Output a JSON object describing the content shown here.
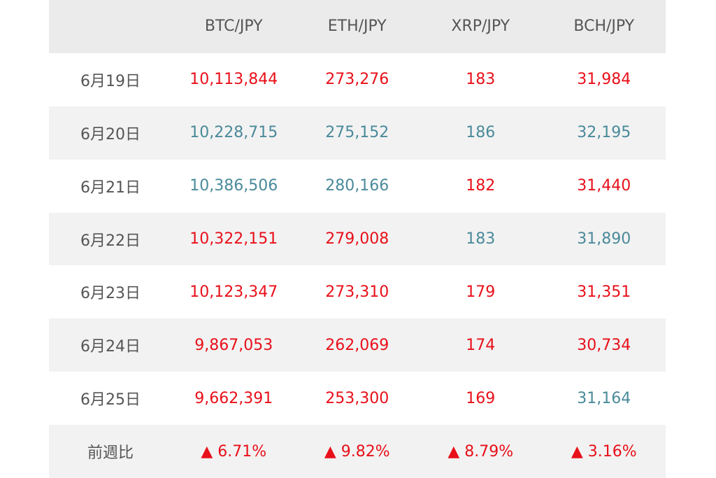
{
  "table": {
    "header": [
      "BTC/JPY",
      "ETH/JPY",
      "XRP/JPY",
      "BCH/JPY"
    ],
    "rows": [
      {
        "label": "6月19日",
        "values": [
          "10,113,844",
          "273,276",
          "183",
          "31,984"
        ],
        "colors": [
          "#e8101a",
          "#e8101a",
          "#e8101a",
          "#e8101a"
        ]
      },
      {
        "label": "6月20日",
        "values": [
          "10,228,715",
          "275,152",
          "186",
          "32,195"
        ],
        "colors": [
          "#4a8a9a",
          "#4a8a9a",
          "#4a8a9a",
          "#4a8a9a"
        ]
      },
      {
        "label": "6月21日",
        "values": [
          "10,386,506",
          "280,166",
          "182",
          "31,440"
        ],
        "colors": [
          "#4a8a9a",
          "#4a8a9a",
          "#e8101a",
          "#e8101a"
        ]
      },
      {
        "label": "6月22日",
        "values": [
          "10,322,151",
          "279,008",
          "183",
          "31,890"
        ],
        "colors": [
          "#e8101a",
          "#e8101a",
          "#4a8a9a",
          "#4a8a9a"
        ]
      },
      {
        "label": "6月23日",
        "values": [
          "10,123,347",
          "273,310",
          "179",
          "31,351"
        ],
        "colors": [
          "#e8101a",
          "#e8101a",
          "#e8101a",
          "#e8101a"
        ]
      },
      {
        "label": "6月24日",
        "values": [
          "9,867,053",
          "262,069",
          "174",
          "30,734"
        ],
        "colors": [
          "#e8101a",
          "#e8101a",
          "#e8101a",
          "#e8101a"
        ]
      },
      {
        "label": "6月25日",
        "values": [
          "9,662,391",
          "253,300",
          "169",
          "31,164"
        ],
        "colors": [
          "#e8101a",
          "#e8101a",
          "#e8101a",
          "#4a8a9a"
        ]
      },
      {
        "label": "前週比",
        "values": [
          "▲ 6.71%",
          "▲ 9.82%",
          "▲ 8.79%",
          "▲ 3.16%"
        ],
        "colors": [
          "#e8101a",
          "#e8101a",
          "#e8101a",
          "#e8101a"
        ]
      }
    ]
  }
}
